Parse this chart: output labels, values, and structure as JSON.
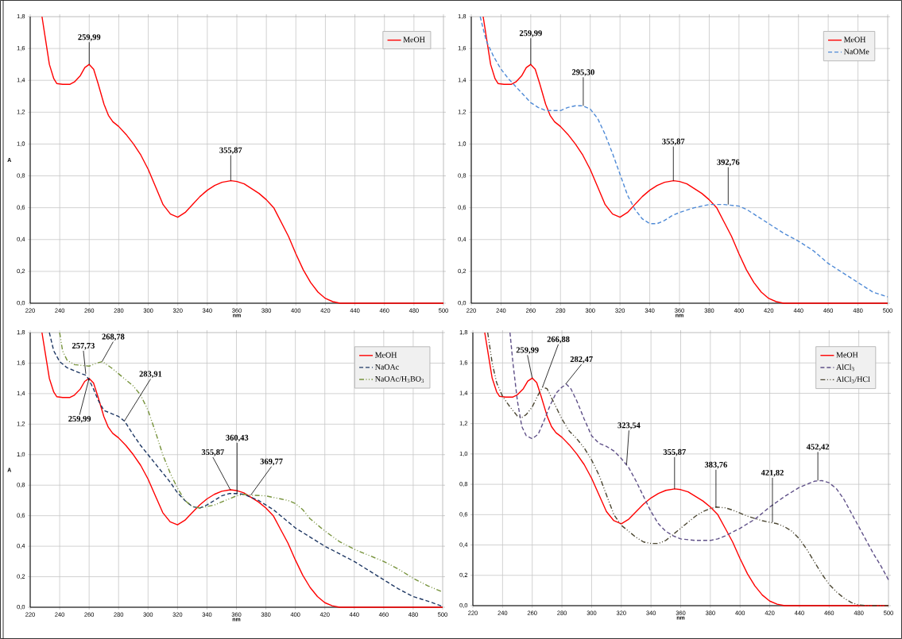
{
  "chart_data": [
    {
      "type": "line",
      "xlabel": "nm",
      "ylabel": "A",
      "xlim": [
        220,
        500
      ],
      "ylim": [
        0,
        1.8
      ],
      "xticks": [
        220,
        240,
        260,
        280,
        300,
        320,
        340,
        360,
        380,
        400,
        420,
        440,
        460,
        480,
        500
      ],
      "yticks": [
        {
          "value": 0,
          "label": "0,0"
        },
        {
          "value": 0.2,
          "label": "0,2"
        },
        {
          "value": 0.4,
          "label": "0,4"
        },
        {
          "value": 0.6,
          "label": "0,6"
        },
        {
          "value": 0.8,
          "label": "0,8"
        },
        {
          "value": 1.0,
          "label": "1,0"
        },
        {
          "value": 1.2,
          "label": "1,2"
        },
        {
          "value": 1.4,
          "label": "1,4"
        },
        {
          "value": 1.6,
          "label": "1,6"
        },
        {
          "value": 1.8,
          "label": "1,8"
        }
      ],
      "grid": true,
      "legend": "top right",
      "series": [
        {
          "name": "MeOH",
          "color": "#ff0000",
          "line_style": "solid",
          "x": [
            228,
            230,
            233,
            236,
            238,
            242,
            247,
            250,
            254,
            257,
            260,
            263,
            266,
            270,
            273,
            276,
            280,
            285,
            290,
            295,
            300,
            305,
            310,
            315,
            320,
            325,
            330,
            335,
            340,
            345,
            350,
            356,
            360,
            365,
            370,
            375,
            380,
            385,
            390,
            395,
            400,
            405,
            410,
            415,
            420,
            425,
            430,
            440,
            460,
            480,
            500
          ],
          "values": [
            1.8,
            1.68,
            1.5,
            1.41,
            1.38,
            1.375,
            1.375,
            1.39,
            1.43,
            1.48,
            1.5,
            1.47,
            1.38,
            1.25,
            1.18,
            1.14,
            1.11,
            1.06,
            1.0,
            0.93,
            0.84,
            0.73,
            0.62,
            0.56,
            0.54,
            0.57,
            0.62,
            0.67,
            0.71,
            0.74,
            0.76,
            0.77,
            0.765,
            0.75,
            0.72,
            0.69,
            0.65,
            0.6,
            0.51,
            0.42,
            0.31,
            0.21,
            0.13,
            0.07,
            0.03,
            0.01,
            0,
            0,
            0,
            0,
            0
          ]
        }
      ],
      "annotations": [
        {
          "text": "259,99",
          "x": 259.99,
          "y": 1.5
        },
        {
          "text": "355,87",
          "x": 355.87,
          "y": 0.77
        }
      ]
    },
    {
      "type": "line",
      "xlabel": "nm",
      "xlim": [
        220,
        500
      ],
      "ylim": [
        0,
        1.8
      ],
      "xticks": [
        220,
        240,
        260,
        280,
        300,
        320,
        340,
        360,
        380,
        400,
        420,
        440,
        460,
        480,
        500
      ],
      "yticks": [
        {
          "value": 0,
          "label": "0,0"
        },
        {
          "value": 0.2,
          "label": "0,2"
        },
        {
          "value": 0.4,
          "label": "0,4"
        },
        {
          "value": 0.6,
          "label": "0,6"
        },
        {
          "value": 0.8,
          "label": "0,8"
        },
        {
          "value": 1.0,
          "label": "1,0"
        },
        {
          "value": 1.2,
          "label": "1,2"
        },
        {
          "value": 1.4,
          "label": "1,4"
        },
        {
          "value": 1.6,
          "label": "1,6"
        },
        {
          "value": 1.8,
          "label": "1,8"
        }
      ],
      "grid": true,
      "legend": "top right",
      "series": [
        {
          "name": "MeOH",
          "color": "#ff0000",
          "line_style": "solid",
          "x": [
            228,
            230,
            233,
            236,
            238,
            242,
            247,
            250,
            254,
            257,
            260,
            263,
            266,
            270,
            273,
            276,
            280,
            285,
            290,
            295,
            300,
            305,
            310,
            315,
            320,
            325,
            330,
            335,
            340,
            345,
            350,
            356,
            360,
            365,
            370,
            375,
            380,
            385,
            390,
            395,
            400,
            405,
            410,
            415,
            420,
            425,
            430,
            440,
            460,
            480,
            500
          ],
          "values": [
            1.8,
            1.68,
            1.5,
            1.41,
            1.38,
            1.375,
            1.375,
            1.39,
            1.43,
            1.48,
            1.5,
            1.47,
            1.38,
            1.25,
            1.18,
            1.14,
            1.11,
            1.06,
            1.0,
            0.93,
            0.84,
            0.73,
            0.62,
            0.56,
            0.54,
            0.57,
            0.62,
            0.67,
            0.71,
            0.74,
            0.76,
            0.77,
            0.765,
            0.75,
            0.72,
            0.69,
            0.65,
            0.6,
            0.51,
            0.42,
            0.31,
            0.21,
            0.13,
            0.07,
            0.03,
            0.01,
            0,
            0,
            0,
            0,
            0
          ]
        },
        {
          "name": "NaOMe",
          "color": "#4f8ad6",
          "line_style": "dashed",
          "x": [
            226,
            230,
            235,
            240,
            245,
            250,
            255,
            260,
            265,
            270,
            275,
            280,
            285,
            290,
            295,
            300,
            305,
            310,
            315,
            320,
            325,
            330,
            335,
            340,
            345,
            350,
            355,
            360,
            370,
            380,
            390,
            400,
            405,
            410,
            420,
            430,
            440,
            450,
            460,
            470,
            480,
            490,
            500
          ],
          "values": [
            1.8,
            1.65,
            1.55,
            1.47,
            1.41,
            1.36,
            1.31,
            1.26,
            1.23,
            1.21,
            1.21,
            1.21,
            1.23,
            1.24,
            1.24,
            1.22,
            1.16,
            1.06,
            0.94,
            0.81,
            0.68,
            0.59,
            0.53,
            0.5,
            0.5,
            0.52,
            0.55,
            0.57,
            0.6,
            0.62,
            0.62,
            0.61,
            0.59,
            0.56,
            0.5,
            0.44,
            0.39,
            0.33,
            0.25,
            0.19,
            0.13,
            0.07,
            0.04
          ]
        }
      ],
      "annotations": [
        {
          "text": "259,99",
          "x": 259.99,
          "y": 1.5
        },
        {
          "text": "295,30",
          "x": 295.3,
          "y": 1.24
        },
        {
          "text": "355,87",
          "x": 355.87,
          "y": 0.77
        },
        {
          "text": "392,76",
          "x": 392.76,
          "y": 0.62
        }
      ]
    },
    {
      "type": "line",
      "xlabel": "nm",
      "ylabel": "A",
      "xlim": [
        220,
        500
      ],
      "ylim": [
        0,
        1.8
      ],
      "xticks": [
        220,
        240,
        260,
        280,
        300,
        320,
        340,
        360,
        380,
        400,
        420,
        440,
        460,
        480,
        500
      ],
      "yticks": [
        {
          "value": 0,
          "label": "0,0"
        },
        {
          "value": 0.2,
          "label": "0,2"
        },
        {
          "value": 0.4,
          "label": "0,4"
        },
        {
          "value": 0.6,
          "label": "0,6"
        },
        {
          "value": 0.8,
          "label": "0,8"
        },
        {
          "value": 1.0,
          "label": "1,0"
        },
        {
          "value": 1.2,
          "label": "1,2"
        },
        {
          "value": 1.4,
          "label": "1,4"
        },
        {
          "value": 1.6,
          "label": "1,6"
        },
        {
          "value": 1.8,
          "label": "1,8"
        }
      ],
      "grid": true,
      "legend": "top right",
      "series": [
        {
          "name": "MeOH",
          "color": "#ff0000",
          "line_style": "solid",
          "x": [
            228,
            230,
            233,
            236,
            238,
            242,
            247,
            250,
            254,
            257,
            260,
            263,
            266,
            270,
            273,
            276,
            280,
            285,
            290,
            295,
            300,
            305,
            310,
            315,
            320,
            325,
            330,
            335,
            340,
            345,
            350,
            356,
            360,
            365,
            370,
            375,
            380,
            385,
            390,
            395,
            400,
            405,
            410,
            415,
            420,
            425,
            430,
            440,
            460,
            480,
            500
          ],
          "values": [
            1.8,
            1.68,
            1.5,
            1.41,
            1.38,
            1.375,
            1.375,
            1.39,
            1.43,
            1.48,
            1.5,
            1.47,
            1.38,
            1.25,
            1.18,
            1.14,
            1.11,
            1.06,
            1.0,
            0.93,
            0.84,
            0.73,
            0.62,
            0.56,
            0.54,
            0.57,
            0.62,
            0.67,
            0.71,
            0.74,
            0.76,
            0.77,
            0.765,
            0.75,
            0.72,
            0.69,
            0.65,
            0.6,
            0.51,
            0.42,
            0.31,
            0.21,
            0.13,
            0.07,
            0.03,
            0.01,
            0,
            0,
            0,
            0,
            0
          ]
        },
        {
          "name": "NaOAc",
          "color": "#1f3864",
          "line_style": "dashed",
          "x": [
            233,
            236,
            240,
            245,
            250,
            255,
            258,
            260,
            263,
            266,
            270,
            275,
            280,
            284,
            290,
            295,
            300,
            305,
            310,
            315,
            320,
            325,
            330,
            335,
            340,
            345,
            350,
            355,
            360,
            365,
            370,
            375,
            380,
            385,
            390,
            395,
            400,
            410,
            420,
            430,
            440,
            450,
            460,
            470,
            480,
            490,
            500
          ],
          "values": [
            1.8,
            1.68,
            1.61,
            1.57,
            1.55,
            1.53,
            1.52,
            1.49,
            1.43,
            1.36,
            1.29,
            1.27,
            1.25,
            1.22,
            1.13,
            1.06,
            1.0,
            0.94,
            0.88,
            0.82,
            0.75,
            0.7,
            0.66,
            0.65,
            0.67,
            0.7,
            0.73,
            0.745,
            0.745,
            0.74,
            0.72,
            0.7,
            0.67,
            0.64,
            0.6,
            0.56,
            0.52,
            0.46,
            0.4,
            0.35,
            0.3,
            0.24,
            0.18,
            0.12,
            0.07,
            0.04,
            0.005
          ]
        },
        {
          "name": "NaOAc/H$_{3}$BO$_{3}$",
          "color": "#77933c",
          "line_style": "dotted",
          "x": [
            240,
            242,
            245,
            250,
            255,
            260,
            265,
            269,
            275,
            280,
            285,
            290,
            295,
            300,
            305,
            310,
            315,
            320,
            325,
            330,
            335,
            340,
            345,
            350,
            355,
            360,
            365,
            370,
            380,
            390,
            395,
            400,
            405,
            410,
            420,
            430,
            440,
            450,
            460,
            470,
            480,
            490,
            500
          ],
          "values": [
            1.8,
            1.68,
            1.62,
            1.59,
            1.585,
            1.58,
            1.6,
            1.61,
            1.57,
            1.53,
            1.49,
            1.45,
            1.39,
            1.29,
            1.15,
            1.0,
            0.88,
            0.78,
            0.7,
            0.66,
            0.65,
            0.66,
            0.67,
            0.69,
            0.71,
            0.73,
            0.74,
            0.735,
            0.73,
            0.71,
            0.7,
            0.68,
            0.64,
            0.58,
            0.5,
            0.43,
            0.38,
            0.34,
            0.3,
            0.25,
            0.19,
            0.14,
            0.1
          ]
        }
      ],
      "annotations": [
        {
          "text": "257,73",
          "x": 257.73,
          "y": 1.53
        },
        {
          "text": "268,78",
          "x": 268.78,
          "y": 1.61
        },
        {
          "text": "259,99",
          "x": 259.99,
          "y": 1.5
        },
        {
          "text": "283,91",
          "x": 283.91,
          "y": 1.22
        },
        {
          "text": "355,87",
          "x": 355.87,
          "y": 0.77
        },
        {
          "text": "360,43",
          "x": 360.43,
          "y": 0.745
        },
        {
          "text": "369,77",
          "x": 369.77,
          "y": 0.735
        }
      ]
    },
    {
      "type": "line",
      "xlabel": "nm",
      "xlim": [
        220,
        500
      ],
      "ylim": [
        0,
        1.8
      ],
      "xticks": [
        220,
        240,
        260,
        280,
        300,
        320,
        340,
        360,
        380,
        400,
        420,
        440,
        460,
        480,
        500
      ],
      "yticks": [
        {
          "value": 0,
          "label": "0,0"
        },
        {
          "value": 0.2,
          "label": "0,2"
        },
        {
          "value": 0.4,
          "label": "0,4"
        },
        {
          "value": 0.6,
          "label": "0,6"
        },
        {
          "value": 0.8,
          "label": "0,8"
        },
        {
          "value": 1.0,
          "label": "1,0"
        },
        {
          "value": 1.2,
          "label": "1,2"
        },
        {
          "value": 1.4,
          "label": "1,4"
        },
        {
          "value": 1.6,
          "label": "1,6"
        },
        {
          "value": 1.8,
          "label": "1,8"
        }
      ],
      "grid": true,
      "legend": "top right",
      "series": [
        {
          "name": "MeOH",
          "color": "#ff0000",
          "line_style": "solid",
          "x": [
            228,
            230,
            233,
            236,
            238,
            242,
            247,
            250,
            254,
            257,
            260,
            263,
            266,
            270,
            273,
            276,
            280,
            285,
            290,
            295,
            300,
            305,
            310,
            315,
            320,
            325,
            330,
            335,
            340,
            345,
            350,
            356,
            360,
            365,
            370,
            375,
            380,
            385,
            390,
            395,
            400,
            405,
            410,
            415,
            420,
            425,
            430,
            440,
            460,
            480,
            500
          ],
          "values": [
            1.8,
            1.68,
            1.5,
            1.41,
            1.38,
            1.375,
            1.375,
            1.39,
            1.43,
            1.48,
            1.5,
            1.47,
            1.38,
            1.25,
            1.18,
            1.14,
            1.11,
            1.06,
            1.0,
            0.93,
            0.84,
            0.73,
            0.62,
            0.56,
            0.54,
            0.57,
            0.62,
            0.67,
            0.71,
            0.74,
            0.76,
            0.77,
            0.765,
            0.75,
            0.72,
            0.69,
            0.65,
            0.6,
            0.51,
            0.42,
            0.31,
            0.21,
            0.13,
            0.07,
            0.03,
            0.01,
            0,
            0,
            0,
            0,
            0
          ]
        },
        {
          "name": "AlCl$_{3}$",
          "color": "#5f5088",
          "line_style": "dashed",
          "x": [
            245,
            247,
            250,
            253,
            256,
            260,
            264,
            268,
            272,
            276,
            280,
            283,
            286,
            290,
            295,
            300,
            305,
            310,
            315,
            320,
            325,
            330,
            335,
            340,
            345,
            350,
            355,
            360,
            370,
            380,
            385,
            390,
            400,
            410,
            420,
            430,
            440,
            450,
            455,
            460,
            465,
            470,
            475,
            480,
            485,
            490,
            495,
            500
          ],
          "values": [
            1.8,
            1.6,
            1.35,
            1.18,
            1.12,
            1.1,
            1.13,
            1.22,
            1.32,
            1.4,
            1.44,
            1.46,
            1.43,
            1.35,
            1.23,
            1.12,
            1.07,
            1.05,
            1.02,
            0.97,
            0.91,
            0.82,
            0.72,
            0.62,
            0.54,
            0.49,
            0.46,
            0.44,
            0.43,
            0.43,
            0.44,
            0.46,
            0.51,
            0.57,
            0.65,
            0.72,
            0.78,
            0.82,
            0.825,
            0.81,
            0.77,
            0.7,
            0.61,
            0.52,
            0.43,
            0.34,
            0.26,
            0.17
          ]
        },
        {
          "name": "AlCl$_{3}$/HCl",
          "color": "#4a4530",
          "line_style": "dotted",
          "x": [
            230,
            233,
            236,
            240,
            245,
            250,
            253,
            256,
            260,
            264,
            267,
            270,
            275,
            280,
            285,
            290,
            295,
            300,
            305,
            310,
            315,
            320,
            325,
            330,
            335,
            340,
            345,
            350,
            355,
            360,
            365,
            370,
            375,
            380,
            384,
            390,
            395,
            400,
            405,
            410,
            415,
            420,
            425,
            430,
            435,
            440,
            445,
            450,
            455,
            460,
            465,
            470,
            475,
            480,
            485,
            500
          ],
          "values": [
            1.8,
            1.6,
            1.47,
            1.38,
            1.31,
            1.25,
            1.24,
            1.26,
            1.31,
            1.39,
            1.44,
            1.43,
            1.33,
            1.23,
            1.15,
            1.1,
            1.04,
            0.96,
            0.86,
            0.73,
            0.6,
            0.53,
            0.49,
            0.45,
            0.42,
            0.41,
            0.41,
            0.43,
            0.47,
            0.51,
            0.55,
            0.59,
            0.62,
            0.64,
            0.65,
            0.645,
            0.63,
            0.61,
            0.59,
            0.575,
            0.56,
            0.55,
            0.54,
            0.52,
            0.49,
            0.44,
            0.37,
            0.29,
            0.21,
            0.14,
            0.09,
            0.05,
            0.02,
            0.005,
            0,
            0
          ]
        }
      ],
      "annotations": [
        {
          "text": "259,99",
          "x": 259.99,
          "y": 1.5
        },
        {
          "text": "266,88",
          "x": 266.88,
          "y": 1.44
        },
        {
          "text": "282,47",
          "x": 282.47,
          "y": 1.46
        },
        {
          "text": "323,54",
          "x": 323.54,
          "y": 0.93
        },
        {
          "text": "355,87",
          "x": 355.87,
          "y": 0.77
        },
        {
          "text": "383,76",
          "x": 383.76,
          "y": 0.65
        },
        {
          "text": "421,82",
          "x": 421.82,
          "y": 0.55
        },
        {
          "text": "452,42",
          "x": 452.42,
          "y": 0.825
        }
      ]
    }
  ]
}
